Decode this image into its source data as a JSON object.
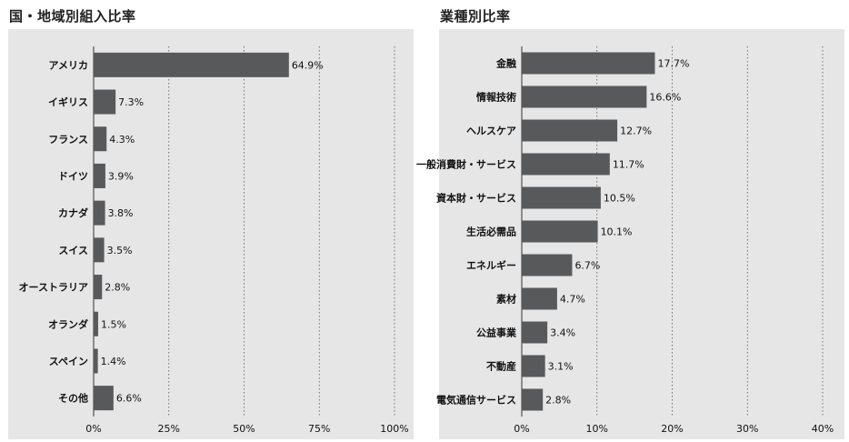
{
  "chart_data": [
    {
      "type": "bar",
      "orientation": "horizontal",
      "title": "国・地域別組入比率",
      "categories": [
        "アメリカ",
        "イギリス",
        "フランス",
        "ドイツ",
        "カナダ",
        "スイス",
        "オーストラリア",
        "オランダ",
        "スペイン",
        "その他"
      ],
      "values": [
        64.9,
        7.3,
        4.3,
        3.9,
        3.8,
        3.5,
        2.8,
        1.5,
        1.4,
        6.6
      ],
      "value_labels": [
        "64.9%",
        "7.3%",
        "4.3%",
        "3.9%",
        "3.8%",
        "3.5%",
        "2.8%",
        "1.5%",
        "1.4%",
        "6.6%"
      ],
      "xlim": [
        0,
        100
      ],
      "xticks": [
        0,
        25,
        50,
        75,
        100
      ],
      "xtick_labels": [
        "0%",
        "25%",
        "50%",
        "75%",
        "100%"
      ],
      "grid": "vertical dashed",
      "bar_color": "#58595b",
      "background_color": "#e6e6e7"
    },
    {
      "type": "bar",
      "orientation": "horizontal",
      "title": "業種別比率",
      "categories": [
        "金融",
        "情報技術",
        "ヘルスケア",
        "一般消費財・サービス",
        "資本財・サービス",
        "生活必需品",
        "エネルギー",
        "素材",
        "公益事業",
        "不動産",
        "電気通信サービス"
      ],
      "values": [
        17.7,
        16.6,
        12.7,
        11.7,
        10.5,
        10.1,
        6.7,
        4.7,
        3.4,
        3.1,
        2.8
      ],
      "value_labels": [
        "17.7%",
        "16.6%",
        "12.7%",
        "11.7%",
        "10.5%",
        "10.1%",
        "6.7%",
        "4.7%",
        "3.4%",
        "3.1%",
        "2.8%"
      ],
      "xlim": [
        0,
        40
      ],
      "xticks": [
        0,
        10,
        20,
        30,
        40
      ],
      "xtick_labels": [
        "0%",
        "10%",
        "20%",
        "30%",
        "40%"
      ],
      "grid": "vertical dashed",
      "bar_color": "#58595b",
      "background_color": "#e6e6e7"
    }
  ]
}
